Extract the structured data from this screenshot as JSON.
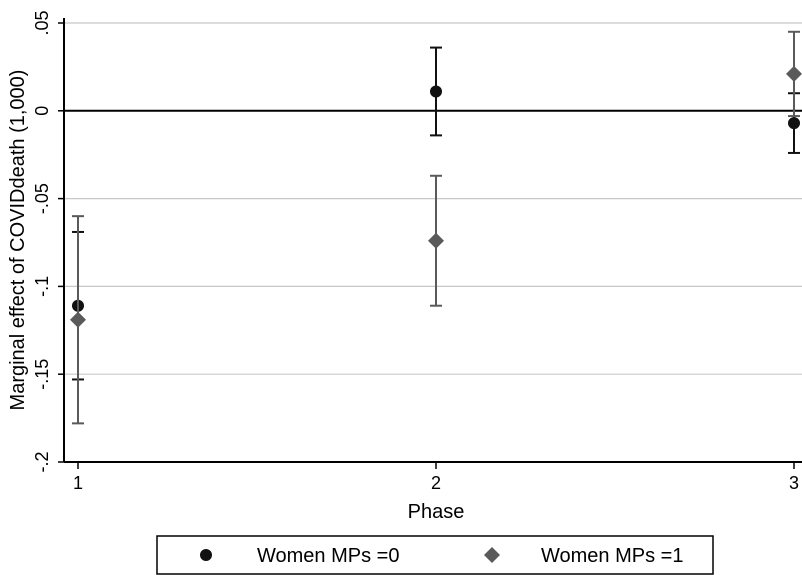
{
  "chart_data": {
    "type": "scatter",
    "title": "",
    "xlabel": "Phase",
    "ylabel": "Marginal effect of COVIDdeath (1,000)",
    "x": [
      1,
      2,
      3
    ],
    "x_tick_labels": [
      "1",
      "2",
      "3"
    ],
    "xlim": [
      1,
      3
    ],
    "ylim": [
      -0.2,
      0.05
    ],
    "y_ticks": [
      0.05,
      0,
      -0.05,
      -0.1,
      -0.15,
      -0.2
    ],
    "y_tick_labels": [
      ".05",
      "0",
      "-.05",
      "-.1",
      "-.15",
      "-.2"
    ],
    "grid": true,
    "reference_line_y": 0,
    "legend_position": "bottom",
    "series": [
      {
        "name": "Women MPs =0",
        "marker": "circle",
        "color": "#111111",
        "values": [
          -0.111,
          0.011,
          -0.007
        ],
        "ci_low": [
          -0.153,
          -0.014,
          -0.024
        ],
        "ci_high": [
          -0.069,
          0.036,
          0.01
        ]
      },
      {
        "name": "Women MPs =1",
        "marker": "diamond",
        "color": "#5a5a5a",
        "values": [
          -0.119,
          -0.074,
          0.021
        ],
        "ci_low": [
          -0.178,
          -0.111,
          -0.003
        ],
        "ci_high": [
          -0.06,
          -0.037,
          0.045
        ]
      }
    ]
  }
}
